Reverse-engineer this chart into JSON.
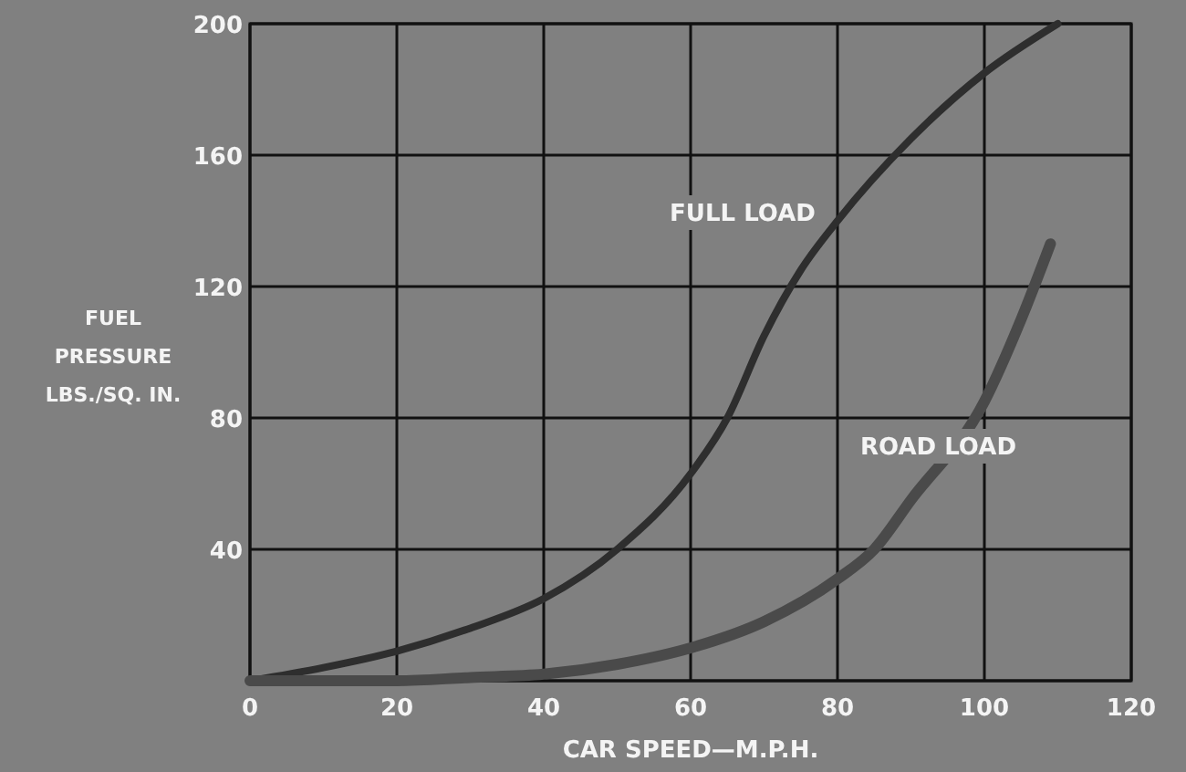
{
  "chart_data": {
    "type": "line",
    "xlabel": "CAR SPEED—M.P.H.",
    "ylabel": "FUEL\nPRESSURE\nLBS./SQ. IN.",
    "xlim": [
      0,
      120
    ],
    "xticks": [
      0,
      20,
      40,
      60,
      80,
      100,
      120
    ],
    "ylim": [
      0,
      200
    ],
    "yticks": [
      {
        "value": 0,
        "label": null
      },
      40,
      80,
      120,
      160,
      200
    ],
    "grid": true,
    "series": [
      {
        "name": "FULL LOAD",
        "color": "#2e2e2e",
        "x": [
          0,
          10,
          20,
          30,
          40,
          50,
          60,
          65,
          70,
          75,
          80,
          90,
          100,
          110
        ],
        "values": [
          0,
          4,
          9,
          16,
          25,
          40,
          63,
          80,
          105,
          125,
          140,
          165,
          185,
          200
        ]
      },
      {
        "name": "ROAD LOAD",
        "color": "#4a4a4a",
        "x": [
          0,
          10,
          20,
          30,
          40,
          50,
          60,
          70,
          80,
          85,
          90,
          100,
          105,
          109
        ],
        "values": [
          0,
          0,
          0,
          1,
          2,
          5,
          10,
          18,
          31,
          40,
          55,
          85,
          110,
          133
        ]
      }
    ]
  }
}
